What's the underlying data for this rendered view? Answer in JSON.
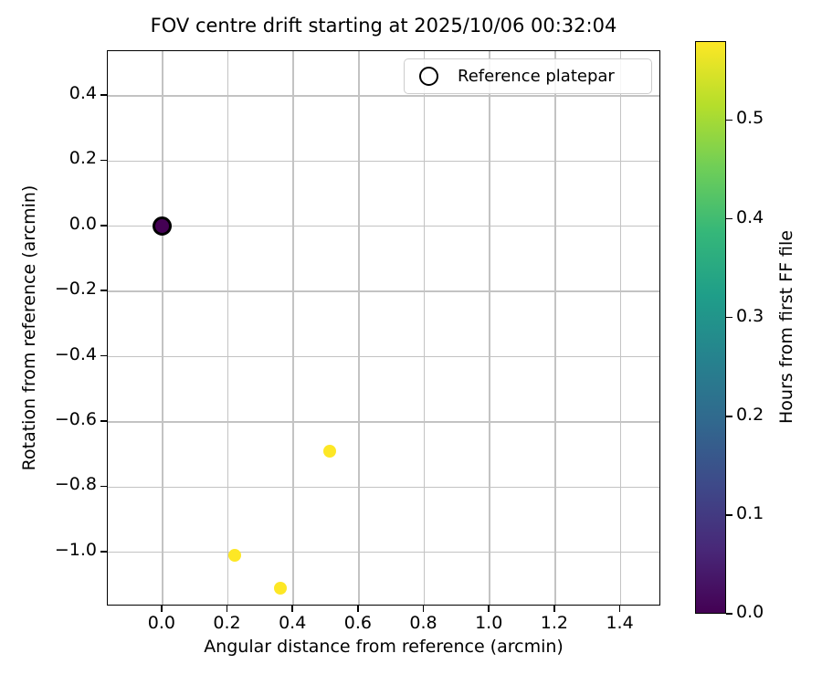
{
  "title": "FOV centre drift starting at 2025/10/06 00:32:04",
  "legend": {
    "label": "Reference platepar",
    "marker": "open-circle"
  },
  "chart_data": {
    "type": "scatter",
    "title": "FOV centre drift starting at 2025/10/06 00:32:04",
    "xlabel": "Angular distance from reference (arcmin)",
    "ylabel": "Rotation from reference (arcmin)",
    "xlim": [
      -0.167,
      1.524
    ],
    "ylim": [
      -1.166,
      0.537
    ],
    "grid": true,
    "legend_position": "upper right",
    "x_ticks": {
      "values": [
        0.0,
        0.2,
        0.4,
        0.6,
        0.8,
        1.0,
        1.2,
        1.4
      ],
      "labels": [
        "0.0",
        "0.2",
        "0.4",
        "0.6",
        "0.8",
        "1.0",
        "1.2",
        "1.4"
      ]
    },
    "y_ticks": {
      "values": [
        0.4,
        0.2,
        0.0,
        -0.2,
        -0.4,
        -0.6,
        -0.8,
        -1.0
      ],
      "labels": [
        "0.4",
        "0.2",
        "0.0",
        "−0.2",
        "−0.4",
        "−0.6",
        "−0.8",
        "−1.0"
      ]
    },
    "reference_point": {
      "x": 0.0,
      "y": 0.0,
      "hours": 0.0,
      "fill": "#440154",
      "edge": "#000000",
      "label": "Reference platepar"
    },
    "drift_points": [
      {
        "x": 0.22,
        "y": -1.01,
        "hours": 0.57,
        "color": "#fde725"
      },
      {
        "x": 0.36,
        "y": -1.11,
        "hours": 0.58,
        "color": "#fde725"
      },
      {
        "x": 0.51,
        "y": -0.69,
        "hours": 0.57,
        "color": "#fde725"
      }
    ],
    "colorbar": {
      "label": "Hours from first FF file",
      "colormap": "viridis",
      "vmin": 0.0,
      "vmax": 0.58,
      "tick_values": [
        0.0,
        0.1,
        0.2,
        0.3,
        0.4,
        0.5
      ],
      "tick_labels": [
        "0.0",
        "0.1",
        "0.2",
        "0.3",
        "0.4",
        "0.5"
      ],
      "gradient": [
        "#440154",
        "#482878",
        "#3e4989",
        "#31688e",
        "#26828e",
        "#1f9e89",
        "#35b779",
        "#6ece58",
        "#b5de2b",
        "#fde725"
      ]
    }
  }
}
